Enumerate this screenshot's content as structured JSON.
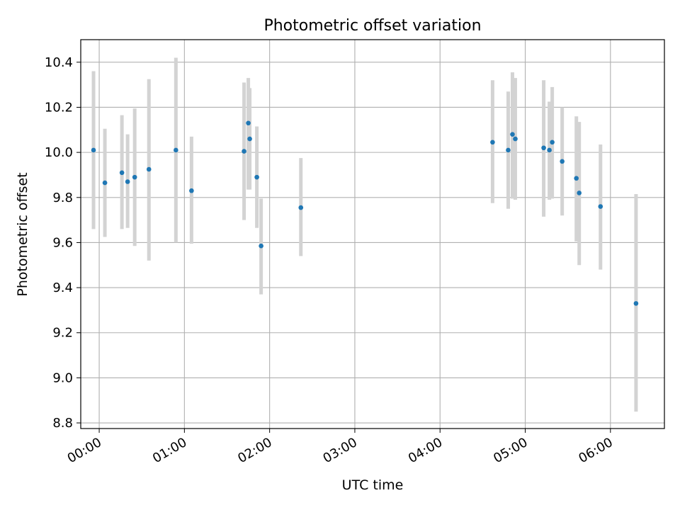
{
  "chart_data": {
    "type": "scatter",
    "title": "Photometric offset variation",
    "xlabel": "UTC time",
    "ylabel": "Photometric offset",
    "x_axis": "time",
    "xlim": [
      "23:47",
      "06:38"
    ],
    "ylim": [
      8.775,
      10.5
    ],
    "xticks": [
      "00:00",
      "01:00",
      "02:00",
      "03:00",
      "04:00",
      "05:00",
      "06:00"
    ],
    "yticks": [
      "8.8",
      "9.0",
      "9.2",
      "9.4",
      "9.6",
      "9.8",
      "10.0",
      "10.2",
      "10.4"
    ],
    "grid": true,
    "colors": {
      "points": "#1f77b4",
      "errorbars": "#d3d3d3",
      "grid": "#b0b0b0"
    },
    "series": [
      {
        "points": [
          {
            "t": "23:56",
            "y": 10.01,
            "lo": 9.66,
            "hi": 10.36
          },
          {
            "t": "00:04",
            "y": 9.865,
            "lo": 9.625,
            "hi": 10.105
          },
          {
            "t": "00:16",
            "y": 9.91,
            "lo": 9.66,
            "hi": 10.165
          },
          {
            "t": "00:20",
            "y": 9.87,
            "lo": 9.665,
            "hi": 10.08
          },
          {
            "t": "00:25",
            "y": 9.89,
            "lo": 9.585,
            "hi": 10.195
          },
          {
            "t": "00:35",
            "y": 9.925,
            "lo": 9.52,
            "hi": 10.325
          },
          {
            "t": "00:54",
            "y": 10.01,
            "lo": 9.6,
            "hi": 10.42
          },
          {
            "t": "01:05",
            "y": 9.83,
            "lo": 9.595,
            "hi": 10.07
          },
          {
            "t": "01:42",
            "y": 10.005,
            "lo": 9.7,
            "hi": 10.31
          },
          {
            "t": "01:45",
            "y": 10.13,
            "lo": 9.835,
            "hi": 10.33
          },
          {
            "t": "01:46",
            "y": 10.06,
            "lo": 9.835,
            "hi": 10.285
          },
          {
            "t": "01:51",
            "y": 9.89,
            "lo": 9.665,
            "hi": 10.115
          },
          {
            "t": "01:54",
            "y": 9.585,
            "lo": 9.37,
            "hi": 9.795
          },
          {
            "t": "02:22",
            "y": 9.755,
            "lo": 9.54,
            "hi": 9.975
          },
          {
            "t": "04:37",
            "y": 10.045,
            "lo": 9.775,
            "hi": 10.32
          },
          {
            "t": "04:48",
            "y": 10.01,
            "lo": 9.75,
            "hi": 10.27
          },
          {
            "t": "04:51",
            "y": 10.08,
            "lo": 9.795,
            "hi": 10.355
          },
          {
            "t": "04:53",
            "y": 10.06,
            "lo": 9.79,
            "hi": 10.33
          },
          {
            "t": "05:13",
            "y": 10.02,
            "lo": 9.715,
            "hi": 10.32
          },
          {
            "t": "05:17",
            "y": 10.01,
            "lo": 9.79,
            "hi": 10.225
          },
          {
            "t": "05:19",
            "y": 10.045,
            "lo": 9.795,
            "hi": 10.29
          },
          {
            "t": "05:26",
            "y": 9.96,
            "lo": 9.72,
            "hi": 10.2
          },
          {
            "t": "05:36",
            "y": 9.885,
            "lo": 9.605,
            "hi": 10.16
          },
          {
            "t": "05:38",
            "y": 9.82,
            "lo": 9.5,
            "hi": 10.135
          },
          {
            "t": "05:53",
            "y": 9.76,
            "lo": 9.48,
            "hi": 10.035
          },
          {
            "t": "06:18",
            "y": 9.33,
            "lo": 8.85,
            "hi": 9.815
          }
        ]
      }
    ]
  }
}
